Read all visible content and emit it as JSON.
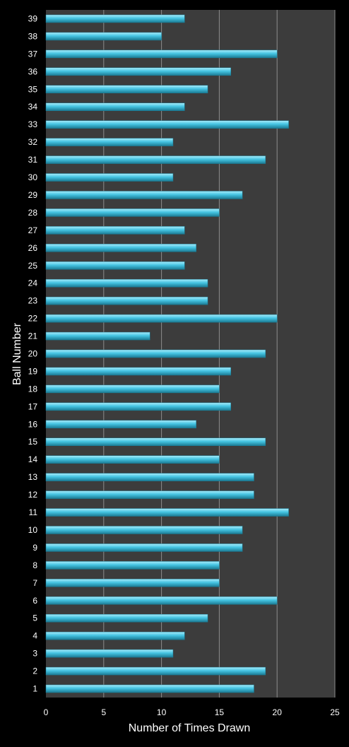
{
  "colors": {
    "background": "#000000",
    "plot_area": "#3c3c3c",
    "gridline": "#8c8c8c",
    "bar": "#45c4e2",
    "bar_highlight": "#a8ecfb",
    "bar_shadow": "#1a7a93",
    "text": "#ffffff"
  },
  "chart_data": {
    "type": "bar",
    "orientation": "horizontal",
    "title": "",
    "xlabel": "Number of Times Drawn",
    "ylabel": "Ball Number",
    "xlim": [
      0,
      25
    ],
    "x_ticks": [
      "0",
      "5",
      "10",
      "15",
      "20",
      "25"
    ],
    "grid": "vertical major gridlines",
    "legend": "none",
    "categories": [
      "1",
      "2",
      "3",
      "4",
      "5",
      "6",
      "7",
      "8",
      "9",
      "10",
      "11",
      "12",
      "13",
      "14",
      "15",
      "16",
      "17",
      "18",
      "19",
      "20",
      "21",
      "22",
      "23",
      "24",
      "25",
      "26",
      "27",
      "28",
      "29",
      "30",
      "31",
      "32",
      "33",
      "34",
      "35",
      "36",
      "37",
      "38",
      "39"
    ],
    "values": [
      18,
      19,
      11,
      12,
      14,
      20,
      15,
      15,
      17,
      17,
      21,
      18,
      18,
      15,
      19,
      13,
      16,
      15,
      16,
      19,
      9,
      20,
      14,
      14,
      12,
      13,
      12,
      15,
      17,
      11,
      19,
      11,
      21,
      12,
      14,
      16,
      20,
      10,
      12
    ]
  }
}
